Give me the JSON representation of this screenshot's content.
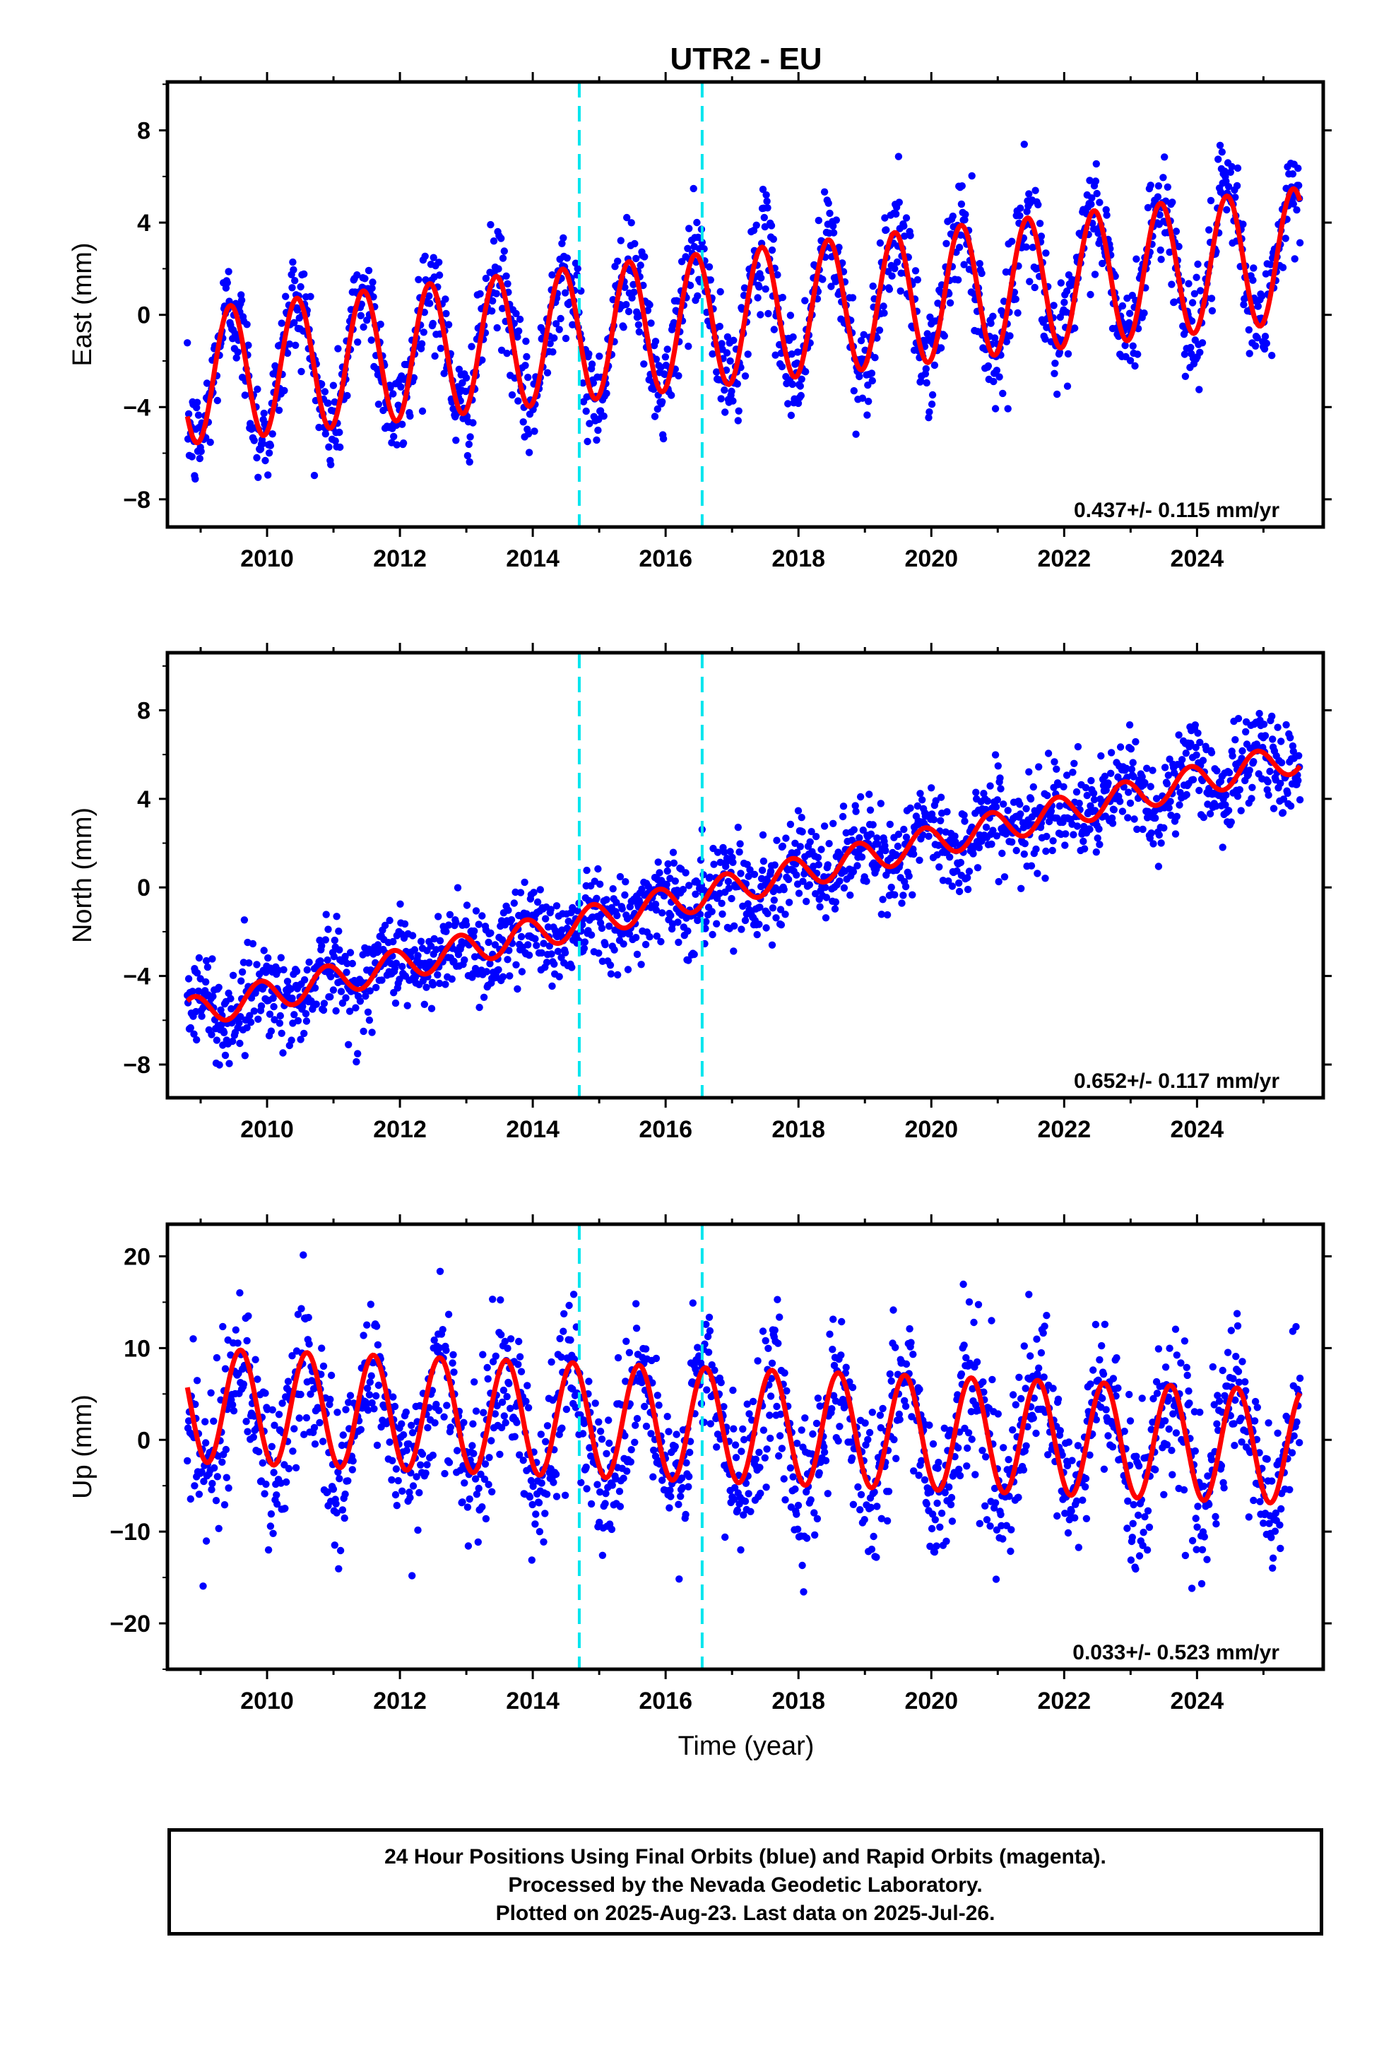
{
  "chart_data": [
    {
      "type": "scatter",
      "title": "UTR2 - EU",
      "xlabel": "",
      "ylabel": "East (mm)",
      "xlim": [
        2008.5,
        2025.9
      ],
      "ylim": [
        -9.2,
        10.1
      ],
      "yticks": [
        -8,
        -4,
        0,
        4,
        8
      ],
      "xticks": [
        2010,
        2012,
        2014,
        2016,
        2018,
        2020,
        2022,
        2024
      ],
      "grid": false,
      "rate_label": "0.437+/- 0.115 mm/yr",
      "breaks": [
        2014.7,
        2016.55
      ],
      "series": [
        {
          "color": "#0000ff",
          "marker": "dot",
          "model": {
            "t0": 2008.8,
            "t1": 2025.55,
            "trend_start": -2.7,
            "trend_end": 2.6,
            "amplitude": 2.9,
            "phase_peak": 0.45,
            "noise_sd": 1.15
          }
        },
        {
          "color": "#ff0000",
          "line": true,
          "x": [
            2008.8,
            2025.55
          ],
          "y_start": -2.7,
          "y_end": 2.6,
          "amplitude": 2.9,
          "phase_peak": 0.45
        }
      ]
    },
    {
      "type": "scatter",
      "title": "",
      "xlabel": "",
      "ylabel": "North (mm)",
      "xlim": [
        2008.5,
        2025.9
      ],
      "ylim": [
        -9.5,
        10.6
      ],
      "yticks": [
        -8,
        -4,
        0,
        4,
        8
      ],
      "xticks": [
        2010,
        2012,
        2014,
        2016,
        2018,
        2020,
        2022,
        2024
      ],
      "grid": false,
      "rate_label": "0.652+/- 0.117 mm/yr",
      "breaks": [
        2014.7,
        2016.55
      ],
      "series": [
        {
          "color": "#0000ff",
          "marker": "dot",
          "model": {
            "t0": 2008.8,
            "t1": 2025.55,
            "trend_start": -5.7,
            "trend_end": 5.9,
            "amplitude": 0.7,
            "phase_peak": 0.9,
            "noise_sd": 1.05
          }
        },
        {
          "color": "#ff0000",
          "line": true,
          "x": [
            2008.8,
            2025.55
          ],
          "y_start": -5.7,
          "y_end": 5.9,
          "amplitude": 0.7,
          "phase_peak": 0.9
        }
      ]
    },
    {
      "type": "scatter",
      "title": "",
      "xlabel": "Time (year)",
      "ylabel": "Up (mm)",
      "xlim": [
        2008.5,
        2025.9
      ],
      "ylim": [
        -25,
        23.5
      ],
      "yticks": [
        -20,
        -10,
        0,
        10,
        20
      ],
      "xticks": [
        2010,
        2012,
        2014,
        2016,
        2018,
        2020,
        2022,
        2024
      ],
      "grid": false,
      "rate_label": "0.033+/- 0.523 mm/yr",
      "breaks": [
        2014.7,
        2016.55
      ],
      "series": [
        {
          "color": "#0000ff",
          "marker": "dot",
          "model": {
            "t0": 2008.8,
            "t1": 2025.55,
            "trend_start": 2.5,
            "trend_end": -1.0,
            "amplitude": 6.3,
            "phase_peak": 0.6,
            "noise_sd": 4.2
          }
        },
        {
          "color": "#ff0000",
          "line": true,
          "x": [
            2008.8,
            2025.55
          ],
          "y_start": 3.8,
          "y_end": -0.8,
          "amplitude": 6.2,
          "phase_peak": 0.6
        }
      ]
    }
  ],
  "footer": {
    "line1": "24 Hour Positions Using Final Orbits (blue) and Rapid Orbits (magenta).",
    "line2": "Processed by the Nevada Geodetic Laboratory.",
    "line3": "Plotted on 2025-Aug-23. Last data on 2025-Jul-26."
  },
  "colors": {
    "points": "#0000ff",
    "fit": "#ff0000",
    "breaks": "#00e5ee"
  }
}
